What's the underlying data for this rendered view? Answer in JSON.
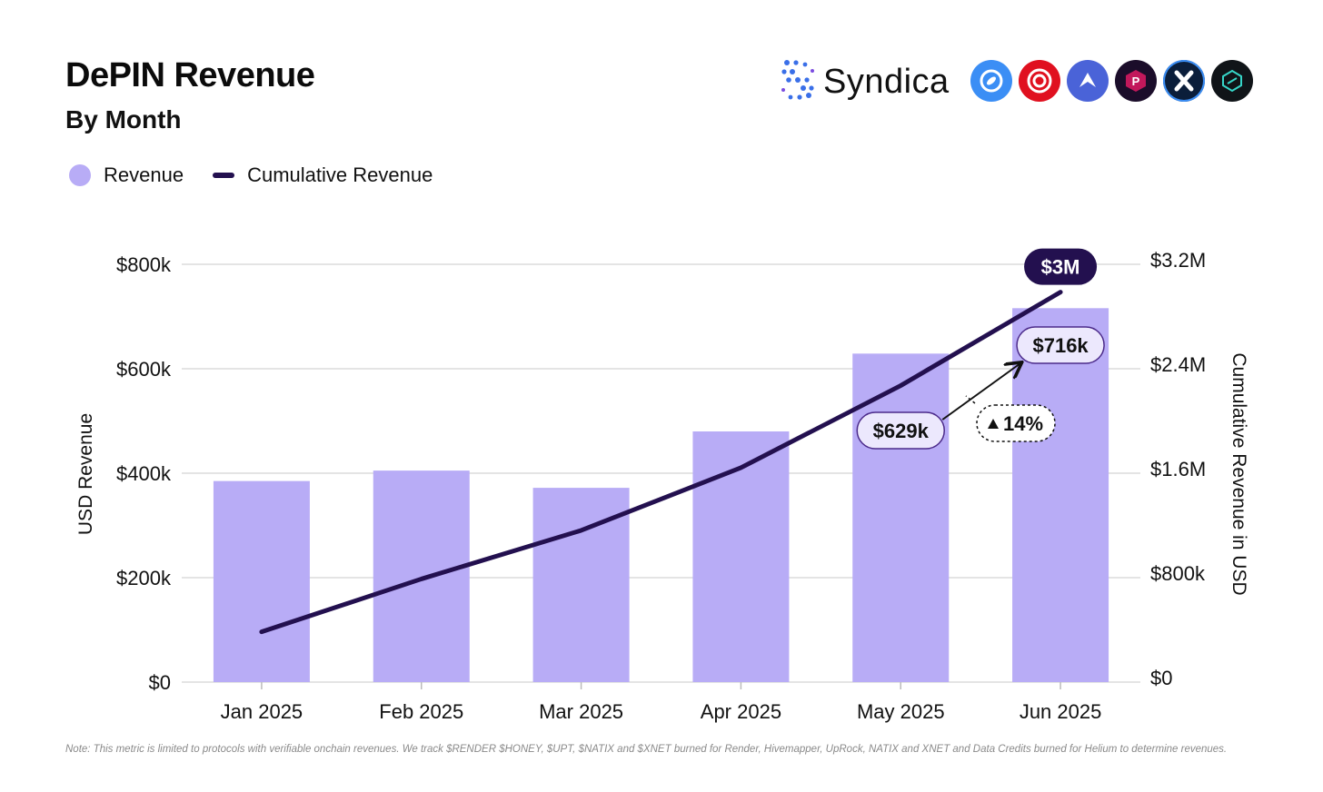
{
  "header": {
    "title": "DePIN Revenue",
    "subtitle": "By Month"
  },
  "brand": {
    "name": "Syndica",
    "partner_logos": [
      {
        "icon": "helium-logo-icon",
        "color": "#3b8ef5"
      },
      {
        "icon": "render-logo-icon",
        "color": "#e0101f"
      },
      {
        "icon": "hivemapper-logo-icon",
        "color": "#4a63d8"
      },
      {
        "icon": "uprock-logo-icon",
        "color": "#1b0d2a"
      },
      {
        "icon": "xnet-logo-icon",
        "color": "#0b1e3a"
      },
      {
        "icon": "natix-logo-icon",
        "color": "#101418"
      }
    ]
  },
  "legend": {
    "revenue_label": "Revenue",
    "cumulative_label": "Cumulative Revenue"
  },
  "colors": {
    "bar": "#b8acf6",
    "line": "#23104f",
    "callout_fill": "#ece8fd"
  },
  "chart_data": {
    "type": "bar",
    "categories": [
      "Jan 2025",
      "Feb 2025",
      "Mar 2025",
      "Apr 2025",
      "May 2025",
      "Jun 2025"
    ],
    "series": [
      {
        "name": "Revenue",
        "type": "bar",
        "axis": "left",
        "values": [
          385000,
          405000,
          372000,
          480000,
          629000,
          716000
        ]
      },
      {
        "name": "Cumulative Revenue",
        "type": "line",
        "axis": "right",
        "values": [
          385000,
          790000,
          1162000,
          1642000,
          2271000,
          2987000
        ]
      }
    ],
    "ylabel": "USD Revenue",
    "y2label": "Cumulative Revenue in USD",
    "ylim": [
      0,
      800000
    ],
    "y2lim": [
      0,
      3200000
    ],
    "yticks": [
      "$0",
      "$200k",
      "$400k",
      "$600k",
      "$800k"
    ],
    "y2ticks": [
      "$0",
      "$800k",
      "$1.6M",
      "$2.4M",
      "$3.2M"
    ],
    "grid": true,
    "annotations": {
      "total_label": "$3M",
      "may_label": "$629k",
      "jun_label": "$716k",
      "growth_label": "14%"
    }
  },
  "footer": {
    "note": "Note: This metric is limited to protocols with verifiable onchain revenues. We track $RENDER $HONEY, $UPT, $NATIX and $XNET burned for Render, Hivemapper, UpRock, NATIX and XNET and Data Credits burned for Helium to determine revenues."
  }
}
